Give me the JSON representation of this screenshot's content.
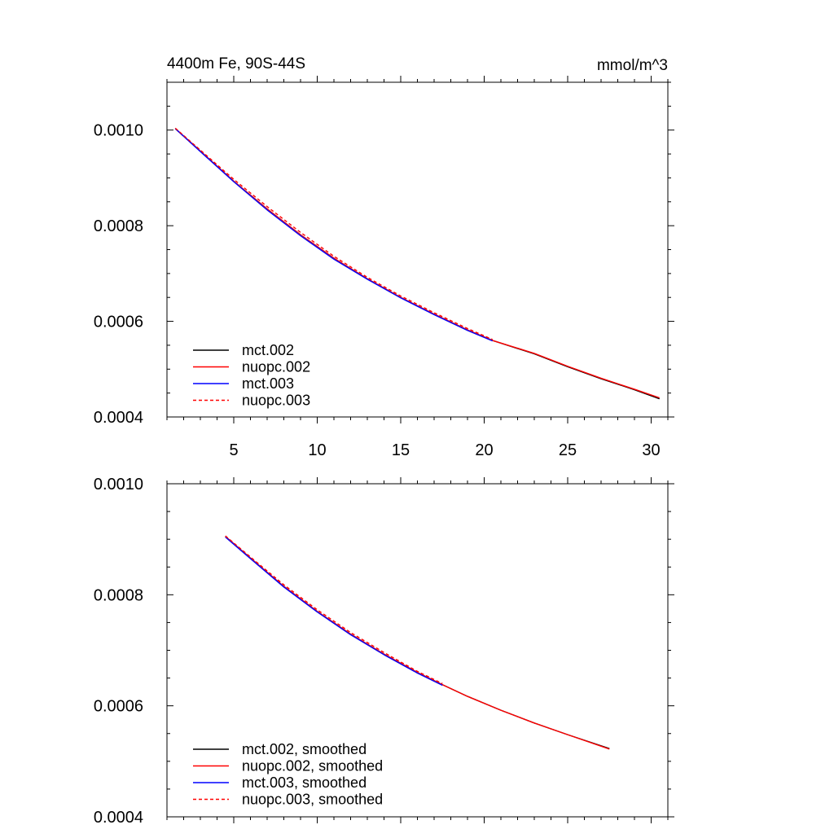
{
  "figure": {
    "title_left": "4400m Fe, 90S-44S",
    "title_right": "mmol/m^3"
  },
  "chart_data": [
    {
      "type": "line",
      "panel": "top",
      "title": "4400m Fe, 90S-44S",
      "units": "mmol/m^3",
      "xlim": [
        1,
        31
      ],
      "ylim": [
        0.0004,
        0.0011
      ],
      "x_ticks": [
        5,
        10,
        15,
        20,
        25,
        30
      ],
      "x_tick_labels": [
        "5",
        "10",
        "15",
        "20",
        "25",
        "30"
      ],
      "y_ticks": [
        0.0004,
        0.0006,
        0.0008,
        0.001
      ],
      "y_tick_labels": [
        "0.0004",
        "0.0006",
        "0.0008",
        "0.0010"
      ],
      "legend_position": "bottom-left",
      "series": [
        {
          "name": "mct.002",
          "color": "#000000",
          "dash": "solid",
          "x": [
            1.5,
            3,
            5,
            7,
            9,
            11,
            13,
            15,
            17,
            19,
            20.5,
            23,
            25,
            27,
            29,
            30.5
          ],
          "y": [
            0.001003,
            0.000956,
            0.000893,
            0.000835,
            0.000781,
            0.000732,
            0.000689,
            0.00065,
            0.000615,
            0.000582,
            0.00056,
            0.000532,
            0.000505,
            0.00048,
            0.000457,
            0.000438
          ]
        },
        {
          "name": "nuopc.002",
          "color": "#ff0000",
          "dash": "solid",
          "x": [
            1.5,
            3,
            5,
            7,
            9,
            11,
            13,
            15,
            17,
            19,
            20.5,
            23,
            25,
            27,
            29,
            30.5
          ],
          "y": [
            0.001003,
            0.000956,
            0.000893,
            0.000835,
            0.000781,
            0.000732,
            0.000689,
            0.00065,
            0.000615,
            0.000582,
            0.00056,
            0.000533,
            0.000506,
            0.000481,
            0.000458,
            0.00044
          ]
        },
        {
          "name": "mct.003",
          "color": "#0000ff",
          "dash": "solid",
          "x": [
            1.5,
            3,
            5,
            7,
            9,
            11,
            13,
            15,
            17,
            19,
            20.5
          ],
          "y": [
            0.001003,
            0.000955,
            0.000892,
            0.000833,
            0.000779,
            0.00073,
            0.000688,
            0.000649,
            0.000614,
            0.000581,
            0.000559
          ]
        },
        {
          "name": "nuopc.003",
          "color": "#ff0000",
          "dash": "dashed",
          "x": [
            1.5,
            3,
            5,
            7,
            9,
            11,
            13,
            15,
            17,
            19,
            20.5
          ],
          "y": [
            0.001004,
            0.000958,
            0.000897,
            0.00084,
            0.000786,
            0.000736,
            0.000692,
            0.000653,
            0.000618,
            0.000585,
            0.000562
          ]
        }
      ]
    },
    {
      "type": "line",
      "panel": "bottom",
      "xlim": [
        1,
        31
      ],
      "ylim": [
        0.0004,
        0.001
      ],
      "x_ticks": [
        5,
        10,
        15,
        20,
        25,
        30
      ],
      "y_ticks": [
        0.0004,
        0.0006,
        0.0008,
        0.001
      ],
      "y_tick_labels": [
        "0.0004",
        "0.0006",
        "0.0008",
        "0.0010"
      ],
      "legend_position": "bottom-left",
      "series": [
        {
          "name": "mct.002, smoothed",
          "color": "#000000",
          "dash": "solid",
          "x": [
            4.5,
            6,
            8,
            10,
            12,
            14,
            16,
            17.5,
            19,
            21,
            23,
            25,
            27.5
          ],
          "y": [
            0.000905,
            0.000866,
            0.000815,
            0.00077,
            0.000729,
            0.000693,
            0.00066,
            0.000638,
            0.000617,
            0.000592,
            0.000569,
            0.000548,
            0.000523
          ]
        },
        {
          "name": "nuopc.002, smoothed",
          "color": "#ff0000",
          "dash": "solid",
          "x": [
            4.5,
            6,
            8,
            10,
            12,
            14,
            16,
            17.5,
            19,
            21,
            23,
            25,
            27.5
          ],
          "y": [
            0.000905,
            0.000866,
            0.000815,
            0.00077,
            0.000729,
            0.000693,
            0.00066,
            0.000638,
            0.000617,
            0.000592,
            0.000569,
            0.000548,
            0.000522
          ]
        },
        {
          "name": "mct.003, smoothed",
          "color": "#0000ff",
          "dash": "solid",
          "x": [
            4.5,
            6,
            8,
            10,
            12,
            14,
            16,
            17.5
          ],
          "y": [
            0.000904,
            0.000865,
            0.000814,
            0.000769,
            0.000728,
            0.000692,
            0.000659,
            0.000637
          ]
        },
        {
          "name": "nuopc.003, smoothed",
          "color": "#ff0000",
          "dash": "dashed",
          "x": [
            4.5,
            6,
            8,
            10,
            12,
            14,
            16,
            17.5
          ],
          "y": [
            0.000906,
            0.000868,
            0.000818,
            0.000773,
            0.000732,
            0.000696,
            0.000662,
            0.00064
          ]
        }
      ]
    }
  ]
}
